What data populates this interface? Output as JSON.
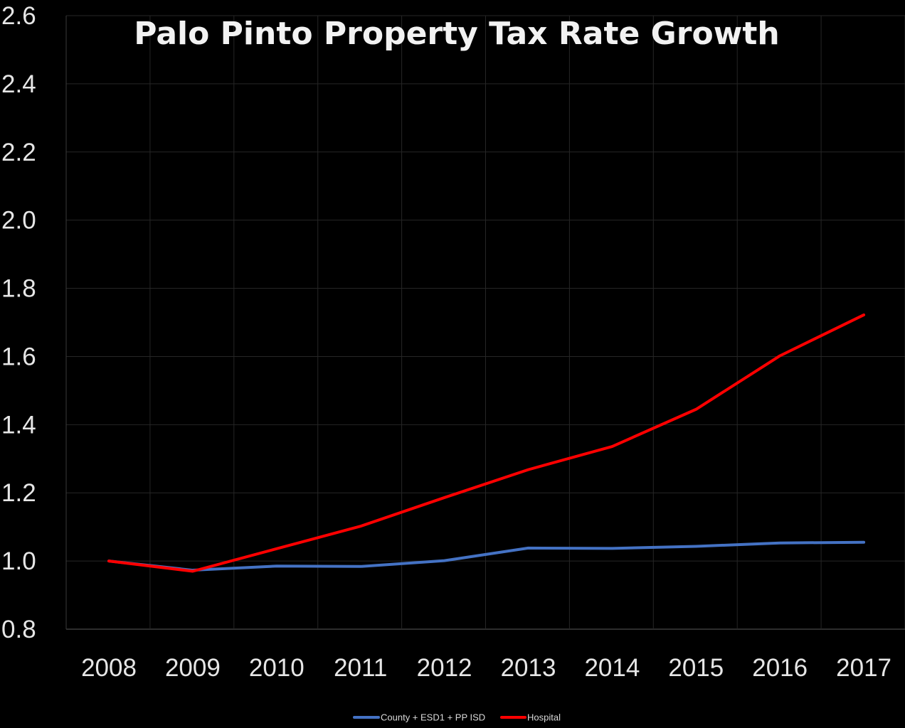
{
  "chart_data": {
    "type": "line",
    "title": "Palo Pinto Property Tax Rate Growth",
    "xlabel": "",
    "ylabel": "",
    "categories": [
      "2008",
      "2009",
      "2010",
      "2011",
      "2012",
      "2013",
      "2014",
      "2015",
      "2016",
      "2017"
    ],
    "ylim": [
      0.8,
      2.6
    ],
    "yticks": [
      "0.8",
      "1.0",
      "1.2",
      "1.4",
      "1.6",
      "1.8",
      "2.0",
      "2.2",
      "2.4",
      "2.6"
    ],
    "grid": true,
    "legend_position": "bottom",
    "series": [
      {
        "name": "County + ESD1 + PP ISD",
        "color": "#4472c4",
        "values": [
          1.0,
          0.973,
          0.985,
          0.984,
          1.001,
          1.038,
          1.037,
          1.043,
          1.053,
          1.055
        ]
      },
      {
        "name": "Hospital",
        "color": "#ff0000",
        "values": [
          1.0,
          0.97,
          1.036,
          1.102,
          1.186,
          1.268,
          1.336,
          1.445,
          1.602,
          1.722
        ]
      }
    ]
  }
}
